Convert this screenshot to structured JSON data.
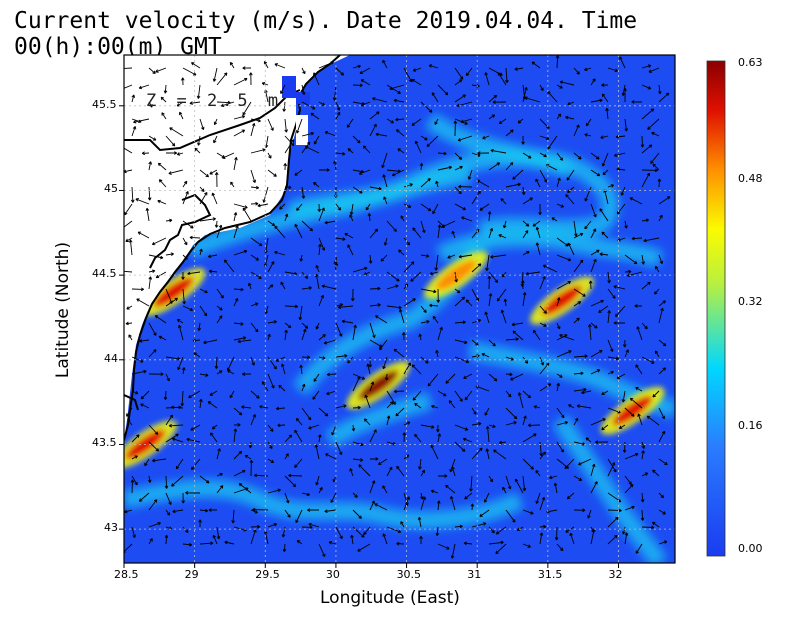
{
  "title": "Current velocity (m/s). Date 2019.04.04. Time 00(h):00(m) GMT",
  "depth_label": "Z = 2.5 m",
  "xlabel": "Longitude (East)",
  "ylabel": "Latitude (North)",
  "x_ticks": [
    "28.5",
    "29",
    "29.5",
    "30",
    "30.5",
    "31",
    "31.5",
    "32"
  ],
  "y_ticks": [
    "45.5",
    "45",
    "44.5",
    "44",
    "43.5",
    "43"
  ],
  "colorbar": {
    "ticks": [
      "0.63",
      "0.48",
      "0.32",
      "0.16",
      "0.00"
    ],
    "min": 0.0,
    "max": 0.63,
    "colors": [
      "#1a4cf0",
      "#00d8ff",
      "#fbfb00",
      "#ff8800",
      "#e00000",
      "#8a0000"
    ]
  },
  "chart_data": {
    "type": "heatmap",
    "title": "Current velocity (m/s). Date 2019.04.04. Time 00(h):00(m) GMT",
    "xlabel": "Longitude (East)",
    "ylabel": "Latitude (North)",
    "xlim": [
      28.5,
      32.4
    ],
    "ylim": [
      42.8,
      45.8
    ],
    "value_range": [
      0.0,
      0.63
    ],
    "units": "m/s",
    "depth": "2.5 m",
    "high_velocity_features": [
      {
        "lon": 30.3,
        "lat": 43.85,
        "speed": 0.58
      },
      {
        "lon": 28.85,
        "lat": 44.4,
        "speed": 0.55
      },
      {
        "lon": 31.6,
        "lat": 44.35,
        "speed": 0.52
      },
      {
        "lon": 32.1,
        "lat": 43.7,
        "speed": 0.5
      },
      {
        "lon": 28.65,
        "lat": 43.5,
        "speed": 0.48
      },
      {
        "lon": 30.85,
        "lat": 44.5,
        "speed": 0.4
      }
    ]
  }
}
